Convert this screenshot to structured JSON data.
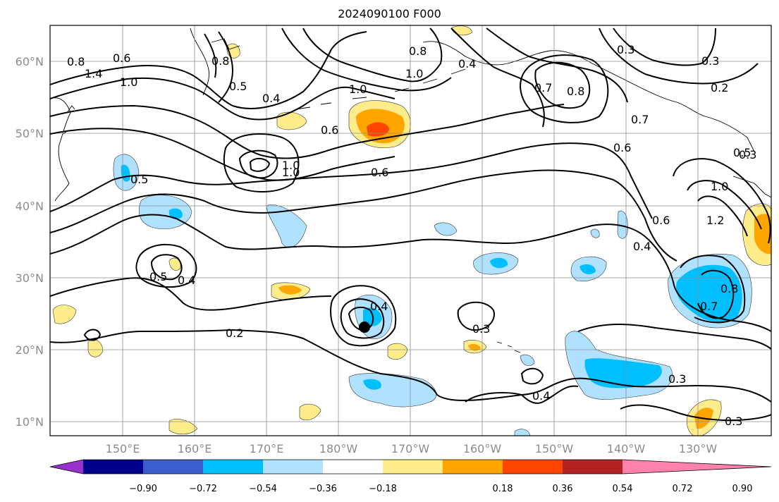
{
  "title": "2024090100 F000",
  "lat_labels": [
    "60°N",
    "50°N",
    "40°N",
    "30°N",
    "20°N",
    "10°N"
  ],
  "lon_labels": [
    "150°E",
    "160°E",
    "170°E",
    "180°W",
    "170°W",
    "160°W",
    "150°W",
    "140°W",
    "130°W"
  ],
  "colorbar": {
    "colors": [
      "#9932cc",
      "#00008b",
      "#3a5fcd",
      "#00bfff",
      "#b0e2ff",
      "#ffffff",
      "#ffec8b",
      "#ffa500",
      "#ff4500",
      "#b22222",
      "#ff82ab"
    ],
    "ticks": [
      "−0.90",
      "−0.72",
      "−0.54",
      "−0.36",
      "−0.18",
      "0.18",
      "0.36",
      "0.54",
      "0.72",
      "0.90"
    ]
  },
  "contour_labels": [
    "0.6",
    "0.8",
    "1.4",
    "1.0",
    "0.8",
    "0.5",
    "0.4",
    "1.0",
    "0.6",
    "1.0",
    "0.8",
    "1.0",
    "0.4",
    "0.3",
    "0.3",
    "0.2",
    "0.8",
    "0.7",
    "0.6",
    "0.5",
    "0.6",
    "1.0",
    "1.2",
    "0.6",
    "0.4",
    "0.8",
    "0.7",
    "0.5",
    "0.4",
    "0.4",
    "0.3",
    "0.2",
    "0.4",
    "0.3",
    "0.3",
    "0.3",
    "0.5",
    "0.7",
    "1.0"
  ],
  "marker": "storm-center"
}
